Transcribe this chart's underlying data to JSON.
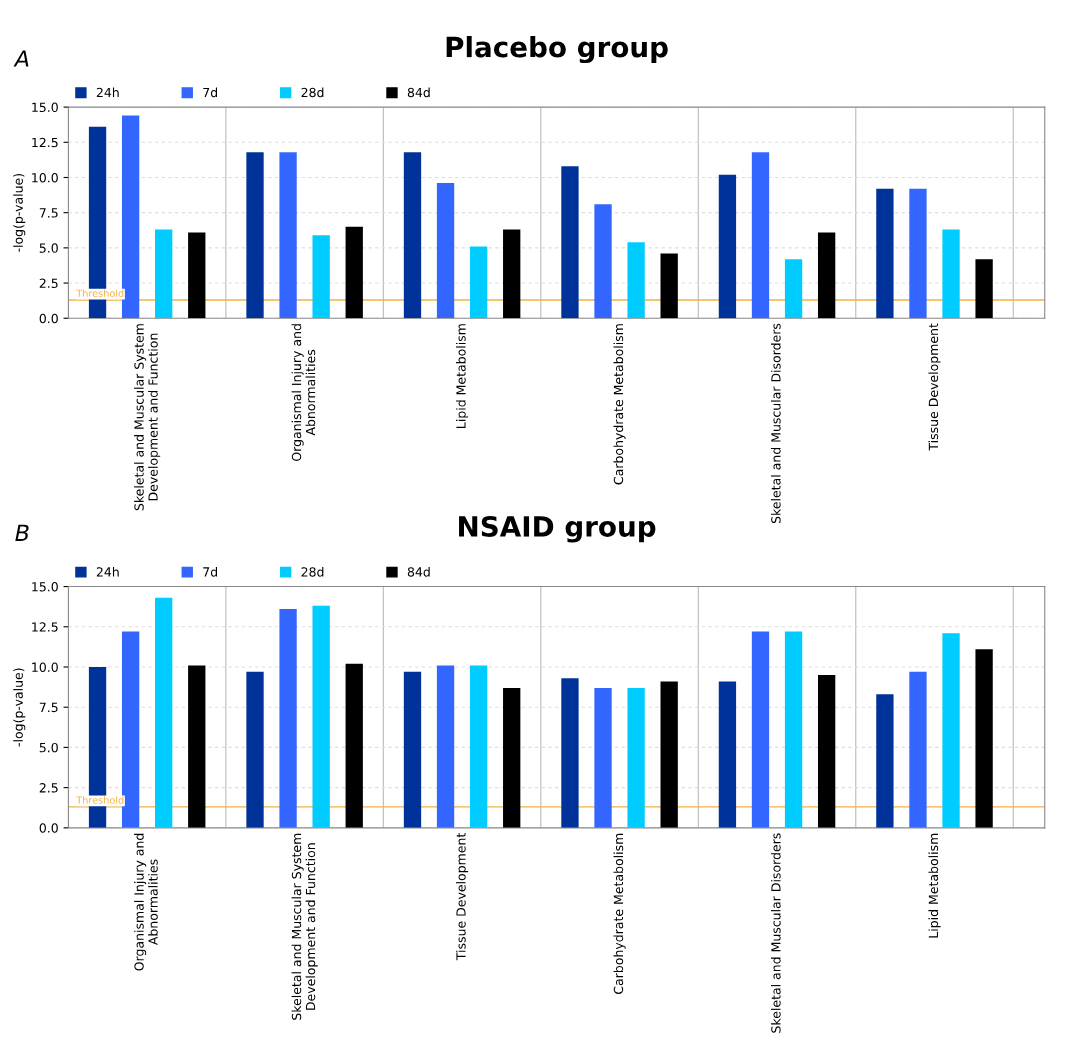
{
  "chart_data": [
    {
      "type": "bar",
      "title": "Placebo group",
      "ylabel": "-log(p-value)",
      "annotations": [
        "A"
      ],
      "categories": [
        "Skeletal and Muscular System\nDevelopment and Function",
        "Organismal Injury and\nAbnormalities",
        "Lipid Metabolism",
        "Carbohydrate Metabolism",
        "Skeletal and Muscular Disorders",
        "Tissue Development"
      ],
      "series": [
        {
          "name": "24h",
          "color": "#003399",
          "values": [
            13.6,
            11.8,
            11.8,
            10.8,
            10.2,
            9.2
          ]
        },
        {
          "name": "7d",
          "color": "#3366ff",
          "values": [
            14.4,
            11.8,
            9.6,
            8.1,
            11.8,
            9.2
          ]
        },
        {
          "name": "28d",
          "color": "#00ccff",
          "values": [
            6.3,
            5.9,
            5.1,
            5.4,
            4.2,
            6.3
          ]
        },
        {
          "name": "84d",
          "color": "#000000",
          "values": [
            6.1,
            6.5,
            6.3,
            4.6,
            6.1,
            4.2
          ]
        }
      ],
      "ylim": [
        0,
        15
      ],
      "yticks": [
        {
          "value": 0,
          "label": "0.0"
        },
        {
          "value": 2.5,
          "label": "2.5"
        },
        {
          "value": 5,
          "label": "5.0"
        },
        {
          "value": 7.5,
          "label": "7.5"
        },
        {
          "value": 10,
          "label": "10.0"
        },
        {
          "value": 12.5,
          "label": "12.5"
        },
        {
          "value": 15,
          "label": "15.0"
        }
      ],
      "ref_lines": [
        {
          "axis": "y",
          "value": 1.3,
          "label": "Threshold",
          "color": "#f5b041"
        }
      ],
      "grid": "y",
      "legend": "top left"
    },
    {
      "type": "bar",
      "title": "NSAID group",
      "ylabel": "-log(p-value)",
      "annotations": [
        "B"
      ],
      "categories": [
        "Organismal Injury and\nAbnormalities",
        "Skeletal and Muscular System\nDevelopment and Function",
        "Tissue Development",
        "Carbohydrate Metabolism",
        "Skeletal and Muscular Disorders",
        "Lipid Metabolism"
      ],
      "series": [
        {
          "name": "24h",
          "color": "#003399",
          "values": [
            10.0,
            9.7,
            9.7,
            9.3,
            9.1,
            8.3
          ]
        },
        {
          "name": "7d",
          "color": "#3366ff",
          "values": [
            12.2,
            13.6,
            10.1,
            8.7,
            12.2,
            9.7
          ]
        },
        {
          "name": "28d",
          "color": "#00ccff",
          "values": [
            14.3,
            13.8,
            10.1,
            8.7,
            12.2,
            12.1
          ]
        },
        {
          "name": "84d",
          "color": "#000000",
          "values": [
            10.1,
            10.2,
            8.7,
            9.1,
            9.5,
            11.1
          ]
        }
      ],
      "ylim": [
        0,
        15
      ],
      "yticks": [
        {
          "value": 0,
          "label": "0.0"
        },
        {
          "value": 2.5,
          "label": "2.5"
        },
        {
          "value": 5,
          "label": "5.0"
        },
        {
          "value": 7.5,
          "label": "7.5"
        },
        {
          "value": 10,
          "label": "10.0"
        },
        {
          "value": 12.5,
          "label": "12.5"
        },
        {
          "value": 15,
          "label": "15.0"
        }
      ],
      "ref_lines": [
        {
          "axis": "y",
          "value": 1.3,
          "label": "Threshold",
          "color": "#f5b041"
        }
      ],
      "grid": "y",
      "legend": "top left"
    }
  ]
}
